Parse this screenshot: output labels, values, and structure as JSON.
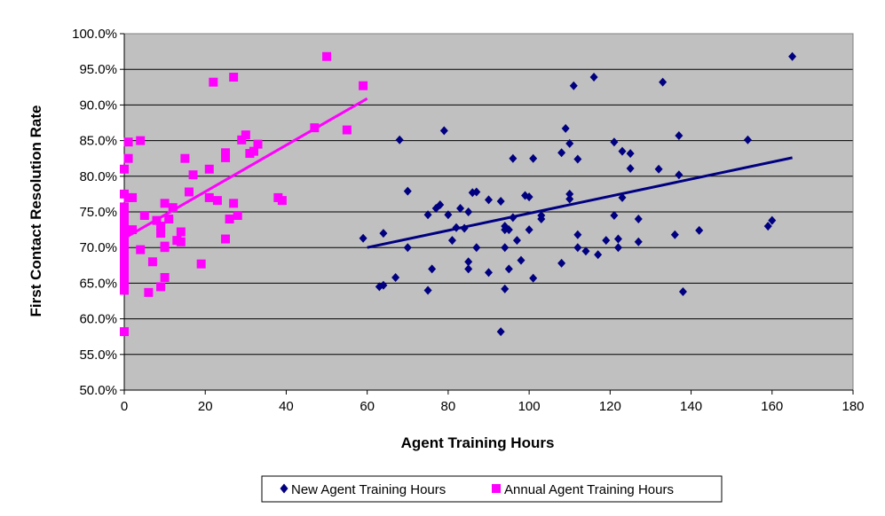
{
  "chart_data": {
    "type": "scatter",
    "title": "",
    "xlabel": "Agent Training Hours",
    "ylabel": "First Contact Resolution Rate",
    "xlim": [
      0,
      180
    ],
    "ylim": [
      0.5,
      1.0
    ],
    "x_ticks": [
      0,
      20,
      40,
      60,
      80,
      100,
      120,
      140,
      160,
      180
    ],
    "y_ticks": [
      0.5,
      0.55,
      0.6,
      0.65,
      0.7,
      0.75,
      0.8,
      0.85,
      0.9,
      0.95,
      1.0
    ],
    "x_tick_labels": [
      "0",
      "20",
      "40",
      "60",
      "80",
      "100",
      "120",
      "140",
      "160",
      "180"
    ],
    "y_tick_labels": [
      "50.0%",
      "55.0%",
      "60.0%",
      "65.0%",
      "70.0%",
      "75.0%",
      "80.0%",
      "85.0%",
      "90.0%",
      "95.0%",
      "100.0%"
    ],
    "grid": "horizontal",
    "plot_background": "#c0c0c0",
    "legend_position": "bottom",
    "series": [
      {
        "name": "New Agent Training Hours",
        "marker": "diamond",
        "color": "#000080",
        "points": [
          [
            59,
            0.713
          ],
          [
            63,
            0.645
          ],
          [
            64,
            0.647
          ],
          [
            64,
            0.72
          ],
          [
            67,
            0.658
          ],
          [
            68,
            0.851
          ],
          [
            70,
            0.779
          ],
          [
            70,
            0.7
          ],
          [
            75,
            0.746
          ],
          [
            75,
            0.64
          ],
          [
            76,
            0.67
          ],
          [
            77,
            0.755
          ],
          [
            78,
            0.76
          ],
          [
            79,
            0.864
          ],
          [
            80,
            0.746
          ],
          [
            81,
            0.71
          ],
          [
            82,
            0.728
          ],
          [
            83,
            0.755
          ],
          [
            84,
            0.727
          ],
          [
            85,
            0.75
          ],
          [
            85,
            0.68
          ],
          [
            85,
            0.67
          ],
          [
            86,
            0.777
          ],
          [
            87,
            0.778
          ],
          [
            87,
            0.7
          ],
          [
            90,
            0.767
          ],
          [
            90,
            0.665
          ],
          [
            93,
            0.765
          ],
          [
            93,
            0.582
          ],
          [
            94,
            0.73
          ],
          [
            94,
            0.725
          ],
          [
            94,
            0.7
          ],
          [
            94,
            0.642
          ],
          [
            95,
            0.725
          ],
          [
            95,
            0.67
          ],
          [
            96,
            0.825
          ],
          [
            96,
            0.742
          ],
          [
            97,
            0.71
          ],
          [
            98,
            0.682
          ],
          [
            99,
            0.773
          ],
          [
            100,
            0.771
          ],
          [
            100,
            0.725
          ],
          [
            101,
            0.825
          ],
          [
            101,
            0.657
          ],
          [
            103,
            0.745
          ],
          [
            103,
            0.74
          ],
          [
            108,
            0.833
          ],
          [
            108,
            0.678
          ],
          [
            109,
            0.867
          ],
          [
            110,
            0.846
          ],
          [
            110,
            0.775
          ],
          [
            110,
            0.768
          ],
          [
            111,
            0.927
          ],
          [
            112,
            0.824
          ],
          [
            112,
            0.718
          ],
          [
            112,
            0.7
          ],
          [
            114,
            0.695
          ],
          [
            116,
            0.939
          ],
          [
            117,
            0.69
          ],
          [
            119,
            0.71
          ],
          [
            121,
            0.848
          ],
          [
            121,
            0.745
          ],
          [
            122,
            0.712
          ],
          [
            122,
            0.7
          ],
          [
            123,
            0.835
          ],
          [
            123,
            0.77
          ],
          [
            125,
            0.832
          ],
          [
            125,
            0.811
          ],
          [
            127,
            0.74
          ],
          [
            127,
            0.708
          ],
          [
            132,
            0.81
          ],
          [
            133,
            0.932
          ],
          [
            136,
            0.718
          ],
          [
            137,
            0.857
          ],
          [
            137,
            0.802
          ],
          [
            138,
            0.638
          ],
          [
            142,
            0.724
          ],
          [
            154,
            0.851
          ],
          [
            159,
            0.73
          ],
          [
            160,
            0.738
          ],
          [
            165,
            0.968
          ]
        ],
        "trendline": [
          [
            60,
            0.7
          ],
          [
            165,
            0.826
          ]
        ]
      },
      {
        "name": "Annual Agent Training Hours",
        "marker": "square",
        "color": "#ff00ff",
        "points": [
          [
            0,
            0.582
          ],
          [
            0,
            0.64
          ],
          [
            0,
            0.645
          ],
          [
            0,
            0.65
          ],
          [
            0,
            0.66
          ],
          [
            0,
            0.67
          ],
          [
            0,
            0.68
          ],
          [
            0,
            0.69
          ],
          [
            0,
            0.7
          ],
          [
            0,
            0.71
          ],
          [
            0,
            0.72
          ],
          [
            0,
            0.73
          ],
          [
            0,
            0.74
          ],
          [
            0,
            0.75
          ],
          [
            0,
            0.757
          ],
          [
            0,
            0.775
          ],
          [
            0,
            0.81
          ],
          [
            1,
            0.848
          ],
          [
            1,
            0.825
          ],
          [
            1,
            0.77
          ],
          [
            2,
            0.725
          ],
          [
            2,
            0.77
          ],
          [
            4,
            0.85
          ],
          [
            4,
            0.697
          ],
          [
            5,
            0.745
          ],
          [
            6,
            0.637
          ],
          [
            7,
            0.68
          ],
          [
            8,
            0.738
          ],
          [
            9,
            0.72
          ],
          [
            9,
            0.645
          ],
          [
            9,
            0.73
          ],
          [
            10,
            0.7
          ],
          [
            10,
            0.762
          ],
          [
            10,
            0.658
          ],
          [
            10,
            0.702
          ],
          [
            11,
            0.74
          ],
          [
            12,
            0.756
          ],
          [
            13,
            0.71
          ],
          [
            14,
            0.722
          ],
          [
            14,
            0.708
          ],
          [
            15,
            0.825
          ],
          [
            16,
            0.778
          ],
          [
            17,
            0.802
          ],
          [
            19,
            0.677
          ],
          [
            21,
            0.81
          ],
          [
            21,
            0.77
          ],
          [
            22,
            0.932
          ],
          [
            23,
            0.766
          ],
          [
            25,
            0.833
          ],
          [
            25,
            0.826
          ],
          [
            25,
            0.712
          ],
          [
            26,
            0.74
          ],
          [
            27,
            0.939
          ],
          [
            27,
            0.762
          ],
          [
            28,
            0.745
          ],
          [
            29,
            0.851
          ],
          [
            30,
            0.858
          ],
          [
            31,
            0.832
          ],
          [
            32,
            0.835
          ],
          [
            33,
            0.845
          ],
          [
            38,
            0.77
          ],
          [
            39,
            0.766
          ],
          [
            47,
            0.868
          ],
          [
            50,
            0.968
          ],
          [
            55,
            0.865
          ],
          [
            59,
            0.927
          ]
        ],
        "trendline": [
          [
            0,
            0.713
          ],
          [
            60,
            0.909
          ]
        ]
      }
    ]
  }
}
